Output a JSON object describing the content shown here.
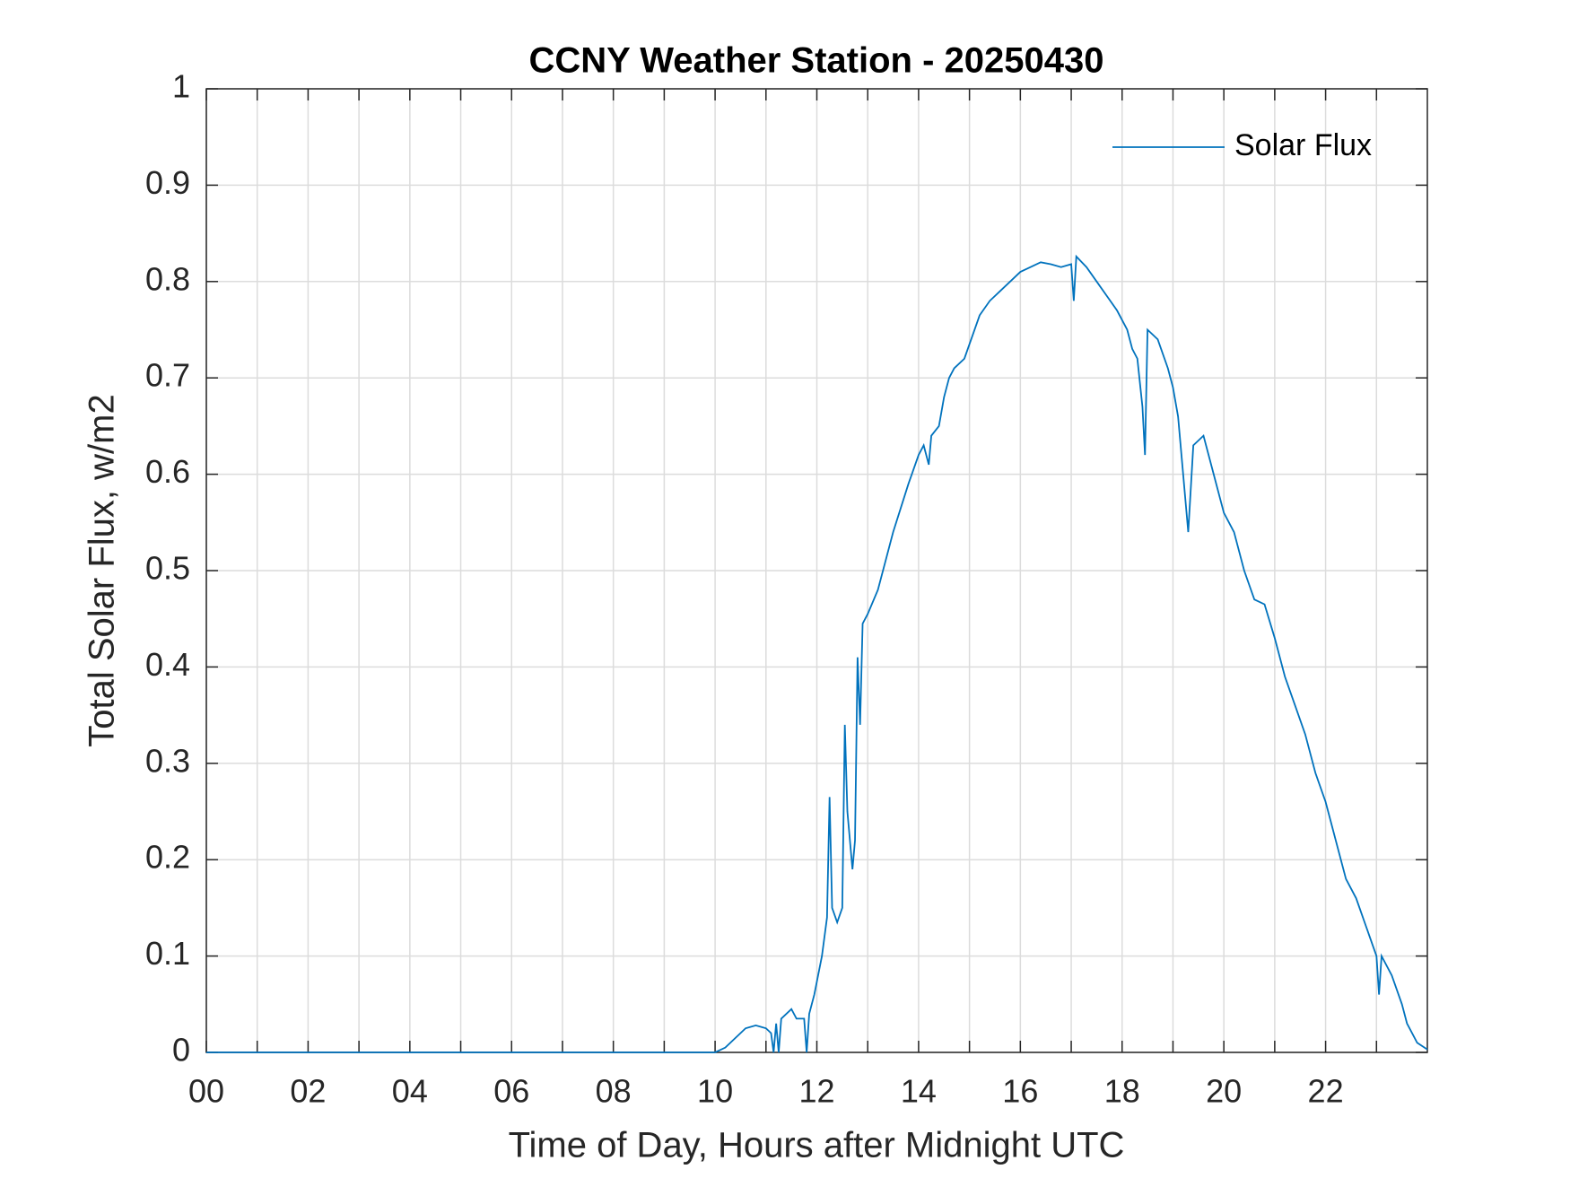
{
  "chart_data": {
    "type": "line",
    "title": "CCNY Weather Station - 20250430",
    "xlabel": "Time of Day, Hours after Midnight UTC",
    "ylabel": "Total Solar Flux, w/m2",
    "xlim": [
      0,
      24
    ],
    "ylim": [
      0,
      1
    ],
    "xticks": [
      {
        "value": 0,
        "label": "00"
      },
      {
        "value": 2,
        "label": "02"
      },
      {
        "value": 4,
        "label": "04"
      },
      {
        "value": 6,
        "label": "06"
      },
      {
        "value": 8,
        "label": "08"
      },
      10,
      12,
      14,
      16,
      18,
      20,
      22
    ],
    "xminorticks": [
      1,
      3,
      5,
      7,
      9,
      11,
      13,
      15,
      17,
      19,
      21,
      23
    ],
    "yticks": [
      0,
      0.1,
      0.2,
      0.3,
      0.4,
      0.5,
      0.6,
      0.7,
      0.8,
      0.9,
      1
    ],
    "grid": true,
    "legend": "upper-right",
    "series": [
      {
        "name": "Solar Flux",
        "color": "#0072bd",
        "x": [
          0,
          10,
          10.2,
          10.4,
          10.6,
          10.8,
          11.0,
          11.1,
          11.15,
          11.2,
          11.25,
          11.3,
          11.5,
          11.6,
          11.75,
          11.8,
          11.85,
          11.95,
          12.1,
          12.2,
          12.25,
          12.3,
          12.4,
          12.5,
          12.55,
          12.6,
          12.7,
          12.75,
          12.8,
          12.85,
          12.9,
          13.0,
          13.2,
          13.5,
          13.8,
          14.0,
          14.1,
          14.2,
          14.25,
          14.4,
          14.5,
          14.6,
          14.7,
          14.9,
          15.0,
          15.2,
          15.4,
          15.6,
          15.8,
          16.0,
          16.2,
          16.4,
          16.6,
          16.8,
          17.0,
          17.05,
          17.1,
          17.3,
          17.5,
          17.7,
          17.9,
          18.1,
          18.2,
          18.3,
          18.4,
          18.45,
          18.5,
          18.7,
          18.9,
          19.0,
          19.1,
          19.2,
          19.3,
          19.4,
          19.6,
          19.8,
          20.0,
          20.2,
          20.4,
          20.6,
          20.8,
          21.0,
          21.2,
          21.4,
          21.6,
          21.8,
          22.0,
          22.2,
          22.4,
          22.6,
          22.8,
          23.0,
          23.05,
          23.1,
          23.3,
          23.5,
          23.6,
          23.8,
          24.0
        ],
        "values": [
          0,
          0,
          0.005,
          0.015,
          0.025,
          0.028,
          0.025,
          0.02,
          0,
          0.03,
          0,
          0.035,
          0.045,
          0.035,
          0.035,
          0,
          0.04,
          0.06,
          0.1,
          0.14,
          0.265,
          0.15,
          0.135,
          0.15,
          0.34,
          0.25,
          0.19,
          0.22,
          0.41,
          0.34,
          0.445,
          0.455,
          0.48,
          0.54,
          0.59,
          0.62,
          0.63,
          0.61,
          0.64,
          0.65,
          0.68,
          0.7,
          0.71,
          0.72,
          0.735,
          0.765,
          0.78,
          0.79,
          0.8,
          0.81,
          0.815,
          0.82,
          0.818,
          0.815,
          0.818,
          0.78,
          0.826,
          0.815,
          0.8,
          0.785,
          0.77,
          0.75,
          0.73,
          0.72,
          0.67,
          0.62,
          0.75,
          0.74,
          0.71,
          0.69,
          0.66,
          0.6,
          0.54,
          0.63,
          0.64,
          0.6,
          0.56,
          0.54,
          0.5,
          0.47,
          0.465,
          0.43,
          0.39,
          0.36,
          0.33,
          0.29,
          0.26,
          0.22,
          0.18,
          0.16,
          0.13,
          0.1,
          0.06,
          0.1,
          0.08,
          0.05,
          0.03,
          0.01,
          0.003
        ]
      }
    ]
  }
}
